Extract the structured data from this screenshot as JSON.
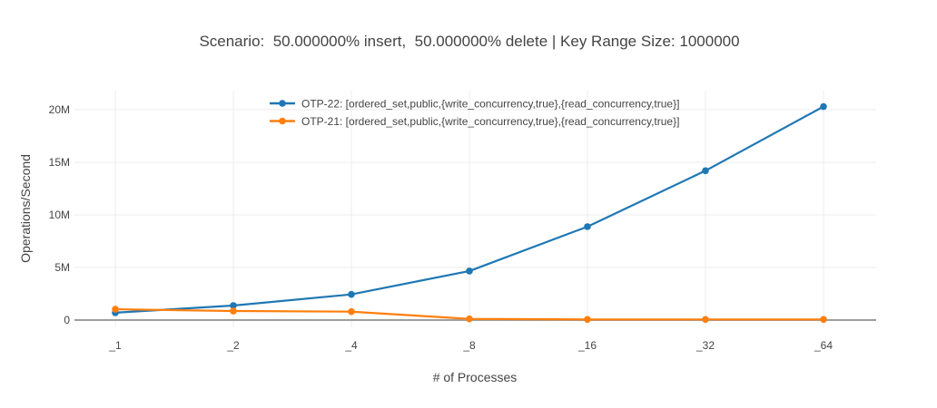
{
  "chart_data": {
    "type": "line",
    "mode": "lines+markers",
    "title": "Scenario:  50.000000% insert,  50.000000% delete | Key Range Size: 1000000",
    "xlabel": "# of Processes",
    "ylabel": "Operations/Second",
    "categories": [
      "_1",
      "_2",
      "_4",
      "_8",
      "_16",
      "_32",
      "_64"
    ],
    "series": [
      {
        "name": "OTP-22: [ordered_set,public,{write_concurrency,true},{read_concurrency,true}]",
        "color": "#1f77b4",
        "values": [
          700000,
          1380000,
          2440000,
          4660000,
          8880000,
          14200000,
          20300000
        ]
      },
      {
        "name": "OTP-21: [ordered_set,public,{write_concurrency,true},{read_concurrency,true}]",
        "color": "#ff7f0e",
        "values": [
          1030000,
          860000,
          800000,
          110000,
          60000,
          60000,
          60000
        ]
      }
    ],
    "yticks": {
      "values": [
        0,
        5000000,
        10000000,
        15000000,
        20000000
      ],
      "labels": [
        "0",
        "5M",
        "10M",
        "15M",
        "20M"
      ]
    },
    "ylim": [
      -700000,
      21800000
    ],
    "grid": true,
    "legend_position": "top-center-inside"
  },
  "style": {
    "series_blue": "#1f77b4",
    "series_orange": "#ff7f0e",
    "text_color": "#444444",
    "grid_color": "#ececec",
    "zeroline_color": "#9e9e9e",
    "background": "#ffffff"
  }
}
